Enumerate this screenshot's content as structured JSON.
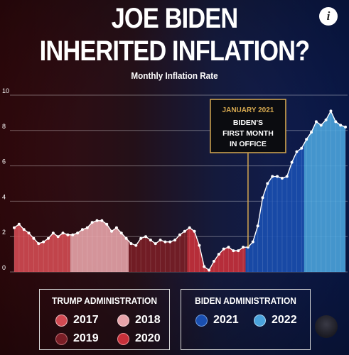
{
  "header": {
    "title_line1": "JOE BIDEN",
    "title_line2": "INHERITED INFLATION?",
    "subtitle": "Monthly Inflation Rate",
    "info_icon": "i"
  },
  "annotation": {
    "line1": "JANUARY 2021",
    "line2": "BIDEN'S",
    "line3": "FIRST MONTH",
    "line4": "IN OFFICE"
  },
  "legend": {
    "trump": {
      "title": "TRUMP ADMINISTRATION",
      "items": [
        {
          "label": "2017",
          "color": "#d24a52"
        },
        {
          "label": "2018",
          "color": "#e7a3a9"
        },
        {
          "label": "2019",
          "color": "#7a1e26"
        },
        {
          "label": "2020",
          "color": "#c8303a"
        }
      ]
    },
    "biden": {
      "title": "BIDEN ADMINISTRATION",
      "items": [
        {
          "label": "2021",
          "color": "#1a4fb0"
        },
        {
          "label": "2022",
          "color": "#4aa3dc"
        }
      ]
    }
  },
  "chart_data": {
    "type": "area",
    "subtitle": "Monthly Inflation Rate",
    "ylim": [
      0,
      10
    ],
    "yticks": [
      "0",
      "2",
      "4",
      "6",
      "8",
      "10"
    ],
    "grid": true,
    "x_start": "2017-01",
    "x_end": "2022-09",
    "series": [
      {
        "name": "2017",
        "color": "#d24a52",
        "values": [
          2.5,
          2.7,
          2.4,
          2.2,
          1.9,
          1.6,
          1.7,
          1.9,
          2.2,
          2.0,
          2.2,
          2.1
        ]
      },
      {
        "name": "2018",
        "color": "#e7a3a9",
        "values": [
          2.1,
          2.2,
          2.4,
          2.5,
          2.8,
          2.9,
          2.9,
          2.7,
          2.3,
          2.5,
          2.2,
          1.9
        ]
      },
      {
        "name": "2019",
        "color": "#7a1e26",
        "values": [
          1.6,
          1.5,
          1.9,
          2.0,
          1.8,
          1.6,
          1.8,
          1.7,
          1.7,
          1.8,
          2.1,
          2.3
        ]
      },
      {
        "name": "2020",
        "color": "#c8303a",
        "values": [
          2.5,
          2.3,
          1.5,
          0.3,
          0.1,
          0.6,
          1.0,
          1.3,
          1.4,
          1.2,
          1.2,
          1.4
        ]
      },
      {
        "name": "2021",
        "color": "#1a4fb0",
        "values": [
          1.4,
          1.7,
          2.6,
          4.2,
          5.0,
          5.4,
          5.4,
          5.3,
          5.4,
          6.2,
          6.8,
          7.0
        ]
      },
      {
        "name": "2022",
        "color": "#4aa3dc",
        "values": [
          7.5,
          7.9,
          8.5,
          8.3,
          8.6,
          9.1,
          8.5,
          8.3,
          8.2
        ]
      }
    ],
    "annotation": {
      "x": "2021-01",
      "text": "JANUARY 2021 BIDEN'S FIRST MONTH IN OFFICE"
    }
  }
}
